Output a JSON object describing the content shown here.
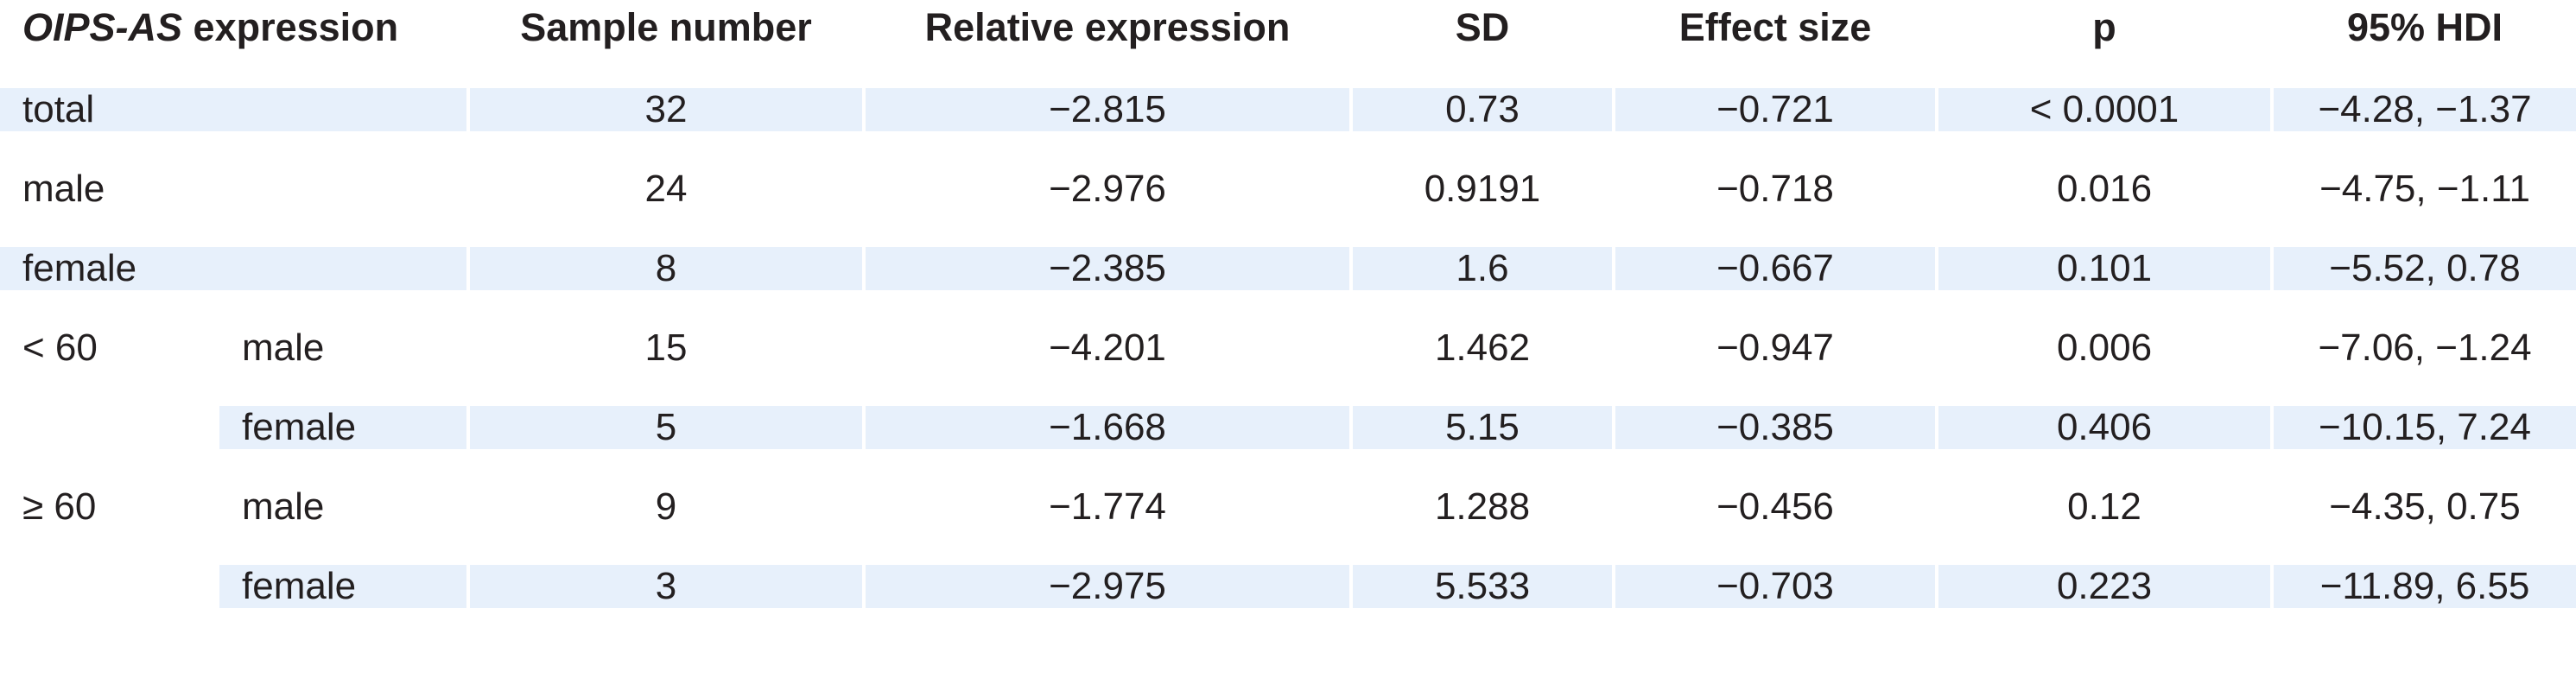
{
  "table": {
    "header": {
      "col0_italic": "OIPS-AS",
      "col0_rest": " expression",
      "col2": "Sample number",
      "col3": "Relative expression",
      "col4": "SD",
      "col5": "Effect size",
      "col6": "p",
      "col7": "95% HDI"
    },
    "rows": [
      {
        "group": "total",
        "sub": "",
        "n": "32",
        "rel": "−2.815",
        "sd": "0.73",
        "effect": "−0.721",
        "p": "< 0.0001",
        "hdi": "−4.28, −1.37"
      },
      {
        "group": "male",
        "sub": "",
        "n": "24",
        "rel": "−2.976",
        "sd": "0.9191",
        "effect": "−0.718",
        "p": "0.016",
        "hdi": "−4.75, −1.11"
      },
      {
        "group": "female",
        "sub": "",
        "n": "8",
        "rel": "−2.385",
        "sd": "1.6",
        "effect": "−0.667",
        "p": "0.101",
        "hdi": "−5.52, 0.78"
      },
      {
        "group": "< 60",
        "sub": "male",
        "n": "15",
        "rel": "−4.201",
        "sd": "1.462",
        "effect": "−0.947",
        "p": "0.006",
        "hdi": "−7.06, −1.24"
      },
      {
        "group": "",
        "sub": "female",
        "n": "5",
        "rel": "−1.668",
        "sd": "5.15",
        "effect": "−0.385",
        "p": "0.406",
        "hdi": "−10.15, 7.24"
      },
      {
        "group": "≥ 60",
        "sub": "male",
        "n": "9",
        "rel": "−1.774",
        "sd": "1.288",
        "effect": "−0.456",
        "p": "0.12",
        "hdi": "−4.35, 0.75"
      },
      {
        "group": "",
        "sub": "female",
        "n": "3",
        "rel": "−2.975",
        "sd": "5.533",
        "effect": "−0.703",
        "p": "0.223",
        "hdi": "−11.89, 6.55"
      }
    ]
  },
  "colors": {
    "shade": "#e7f0fb",
    "text": "#231f20"
  }
}
